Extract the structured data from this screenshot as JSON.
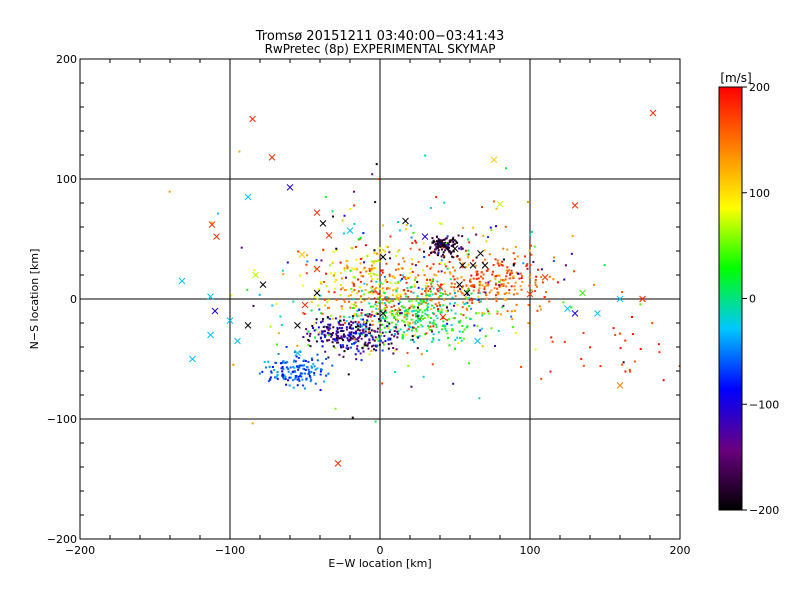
{
  "chart_data": {
    "type": "scatter",
    "title": "Tromsø 20151211 03:40:00−03:41:43",
    "subtitle": "RwPretec (8p) EXPERIMENTAL SKYMAP",
    "xlabel": "E−W location [km]",
    "ylabel": "N−S location [km]",
    "xlim": [
      -200,
      200
    ],
    "ylim": [
      -200,
      200
    ],
    "xticks": [
      -200,
      -100,
      0,
      100,
      200
    ],
    "yticks": [
      -200,
      -100,
      0,
      100,
      200
    ],
    "xtick_labels": [
      "−200",
      "−100",
      "0",
      "100",
      "200"
    ],
    "ytick_labels": [
      "−200",
      "−100",
      "0",
      "100",
      "200"
    ],
    "grid": true,
    "colorbar": {
      "label": "[m/s]",
      "range": [
        -200,
        200
      ],
      "ticks": [
        200,
        100,
        0,
        -100,
        -200
      ],
      "tick_labels": [
        "200",
        "100",
        "0",
        "−100",
        "−200"
      ],
      "colormap": [
        "#000000",
        "#6a0080",
        "#0000ff",
        "#00c8ff",
        "#00ff00",
        "#ffff00",
        "#ff8000",
        "#ff0000"
      ]
    },
    "crosses": [
      {
        "x": -85,
        "y": 150,
        "v": 180
      },
      {
        "x": -72,
        "y": 118,
        "v": 180
      },
      {
        "x": 182,
        "y": 155,
        "v": 180
      },
      {
        "x": -60,
        "y": 93,
        "v": -100
      },
      {
        "x": -88,
        "y": 85,
        "v": -30
      },
      {
        "x": 76,
        "y": 116,
        "v": 110
      },
      {
        "x": -112,
        "y": 62,
        "v": 180
      },
      {
        "x": -109,
        "y": 52,
        "v": 180
      },
      {
        "x": -42,
        "y": 72,
        "v": 180
      },
      {
        "x": -38,
        "y": 63,
        "v": -200
      },
      {
        "x": -34,
        "y": 53,
        "v": 180
      },
      {
        "x": 17,
        "y": 65,
        "v": -200
      },
      {
        "x": 130,
        "y": 78,
        "v": 180
      },
      {
        "x": 80,
        "y": 79,
        "v": 70
      },
      {
        "x": -20,
        "y": 57,
        "v": -30
      },
      {
        "x": -132,
        "y": 15,
        "v": -30
      },
      {
        "x": -113,
        "y": 2,
        "v": -30
      },
      {
        "x": -110,
        "y": -10,
        "v": -100
      },
      {
        "x": -113,
        "y": -30,
        "v": -30
      },
      {
        "x": -125,
        "y": -50,
        "v": -30
      },
      {
        "x": -100,
        "y": -18,
        "v": -30
      },
      {
        "x": -95,
        "y": -35,
        "v": -30
      },
      {
        "x": -88,
        "y": -22,
        "v": -200
      },
      {
        "x": -83,
        "y": 20,
        "v": 70
      },
      {
        "x": -78,
        "y": 12,
        "v": -200
      },
      {
        "x": -52,
        "y": 37,
        "v": 110
      },
      {
        "x": -55,
        "y": -22,
        "v": -200
      },
      {
        "x": -42,
        "y": 25,
        "v": 180
      },
      {
        "x": -42,
        "y": 5,
        "v": -200
      },
      {
        "x": -50,
        "y": -5,
        "v": 180
      },
      {
        "x": -28,
        "y": -137,
        "v": 180
      },
      {
        "x": 2,
        "y": 35,
        "v": -200
      },
      {
        "x": 2,
        "y": -12,
        "v": -200
      },
      {
        "x": 42,
        "y": 45,
        "v": -200
      },
      {
        "x": 50,
        "y": 42,
        "v": -200
      },
      {
        "x": 55,
        "y": 28,
        "v": -200
      },
      {
        "x": 62,
        "y": 28,
        "v": -200
      },
      {
        "x": 67,
        "y": 38,
        "v": -200
      },
      {
        "x": 70,
        "y": 28,
        "v": -200
      },
      {
        "x": 53,
        "y": 12,
        "v": -200
      },
      {
        "x": 58,
        "y": 5,
        "v": -200
      },
      {
        "x": 110,
        "y": 18,
        "v": 180
      },
      {
        "x": 100,
        "y": 4,
        "v": 180
      },
      {
        "x": 135,
        "y": 5,
        "v": 40
      },
      {
        "x": 125,
        "y": -8,
        "v": -30
      },
      {
        "x": 130,
        "y": -12,
        "v": -100
      },
      {
        "x": 145,
        "y": -12,
        "v": -30
      },
      {
        "x": 160,
        "y": 0,
        "v": -30
      },
      {
        "x": 175,
        "y": 0,
        "v": 180
      },
      {
        "x": 160,
        "y": -72,
        "v": 140
      },
      {
        "x": 65,
        "y": -35,
        "v": -30
      },
      {
        "x": 42,
        "y": -15,
        "v": 180
      },
      {
        "x": -55,
        "y": -45,
        "v": -30
      },
      {
        "x": 40,
        "y": 10,
        "v": 180
      },
      {
        "x": 30,
        "y": 52,
        "v": -100
      }
    ],
    "clusters": [
      {
        "cx": 5,
        "cy": 12,
        "sx": 25,
        "sy": 18,
        "n": 380,
        "vmin": 60,
        "vmax": 200
      },
      {
        "cx": 75,
        "cy": 15,
        "sx": 18,
        "sy": 12,
        "n": 220,
        "vmin": 120,
        "vmax": 200
      },
      {
        "cx": 25,
        "cy": -15,
        "sx": 28,
        "sy": 12,
        "n": 300,
        "vmin": -30,
        "vmax": 60
      },
      {
        "cx": -20,
        "cy": -30,
        "sx": 15,
        "sy": 8,
        "n": 280,
        "vmin": -200,
        "vmax": -60
      },
      {
        "cx": -55,
        "cy": -60,
        "sx": 10,
        "sy": 7,
        "n": 150,
        "vmin": -90,
        "vmax": -30
      },
      {
        "cx": 43,
        "cy": 44,
        "sx": 5,
        "sy": 4,
        "n": 120,
        "vmin": -200,
        "vmax": -150
      },
      {
        "cx": 20,
        "cy": 10,
        "sx": 55,
        "sy": 40,
        "n": 250,
        "vmin": -200,
        "vmax": 200
      },
      {
        "cx": 150,
        "cy": -30,
        "sx": 25,
        "sy": 25,
        "n": 30,
        "vmin": 160,
        "vmax": 200
      }
    ]
  }
}
